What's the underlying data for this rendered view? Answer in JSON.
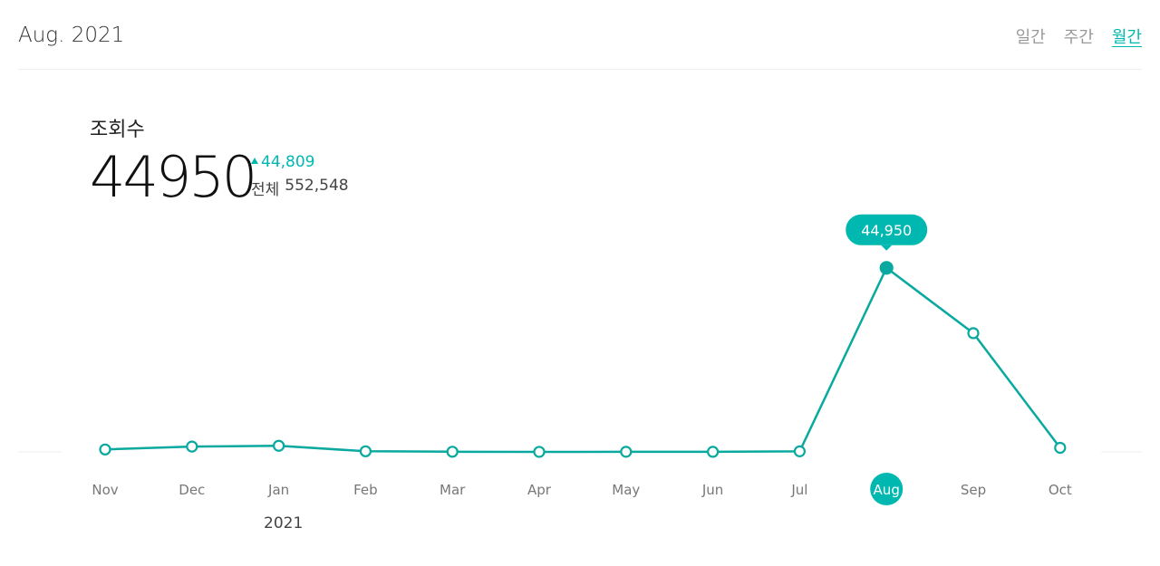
{
  "header": {
    "period": "Aug. 2021",
    "tabs": [
      {
        "label": "일간",
        "active": false
      },
      {
        "label": "주간",
        "active": false
      },
      {
        "label": "월간",
        "active": true
      }
    ]
  },
  "metric": {
    "label": "조회수",
    "value": "44950",
    "delta": "44,809",
    "total_label": "전체",
    "total_value": "552,548"
  },
  "colors": {
    "accent": "#00b8b0",
    "line": "#0aa99f"
  },
  "chart_data": {
    "type": "line",
    "categories": [
      "Nov",
      "Dec",
      "Jan",
      "Feb",
      "Mar",
      "Apr",
      "May",
      "Jun",
      "Jul",
      "Aug",
      "Sep",
      "Oct"
    ],
    "year_label": "2021",
    "values": [
      600,
      1300,
      1500,
      150,
      40,
      10,
      30,
      20,
      141,
      44950,
      29000,
      1000
    ],
    "highlight_index": 9,
    "highlight_label": "44,950",
    "ylim": [
      0,
      48000
    ],
    "grid": false
  }
}
